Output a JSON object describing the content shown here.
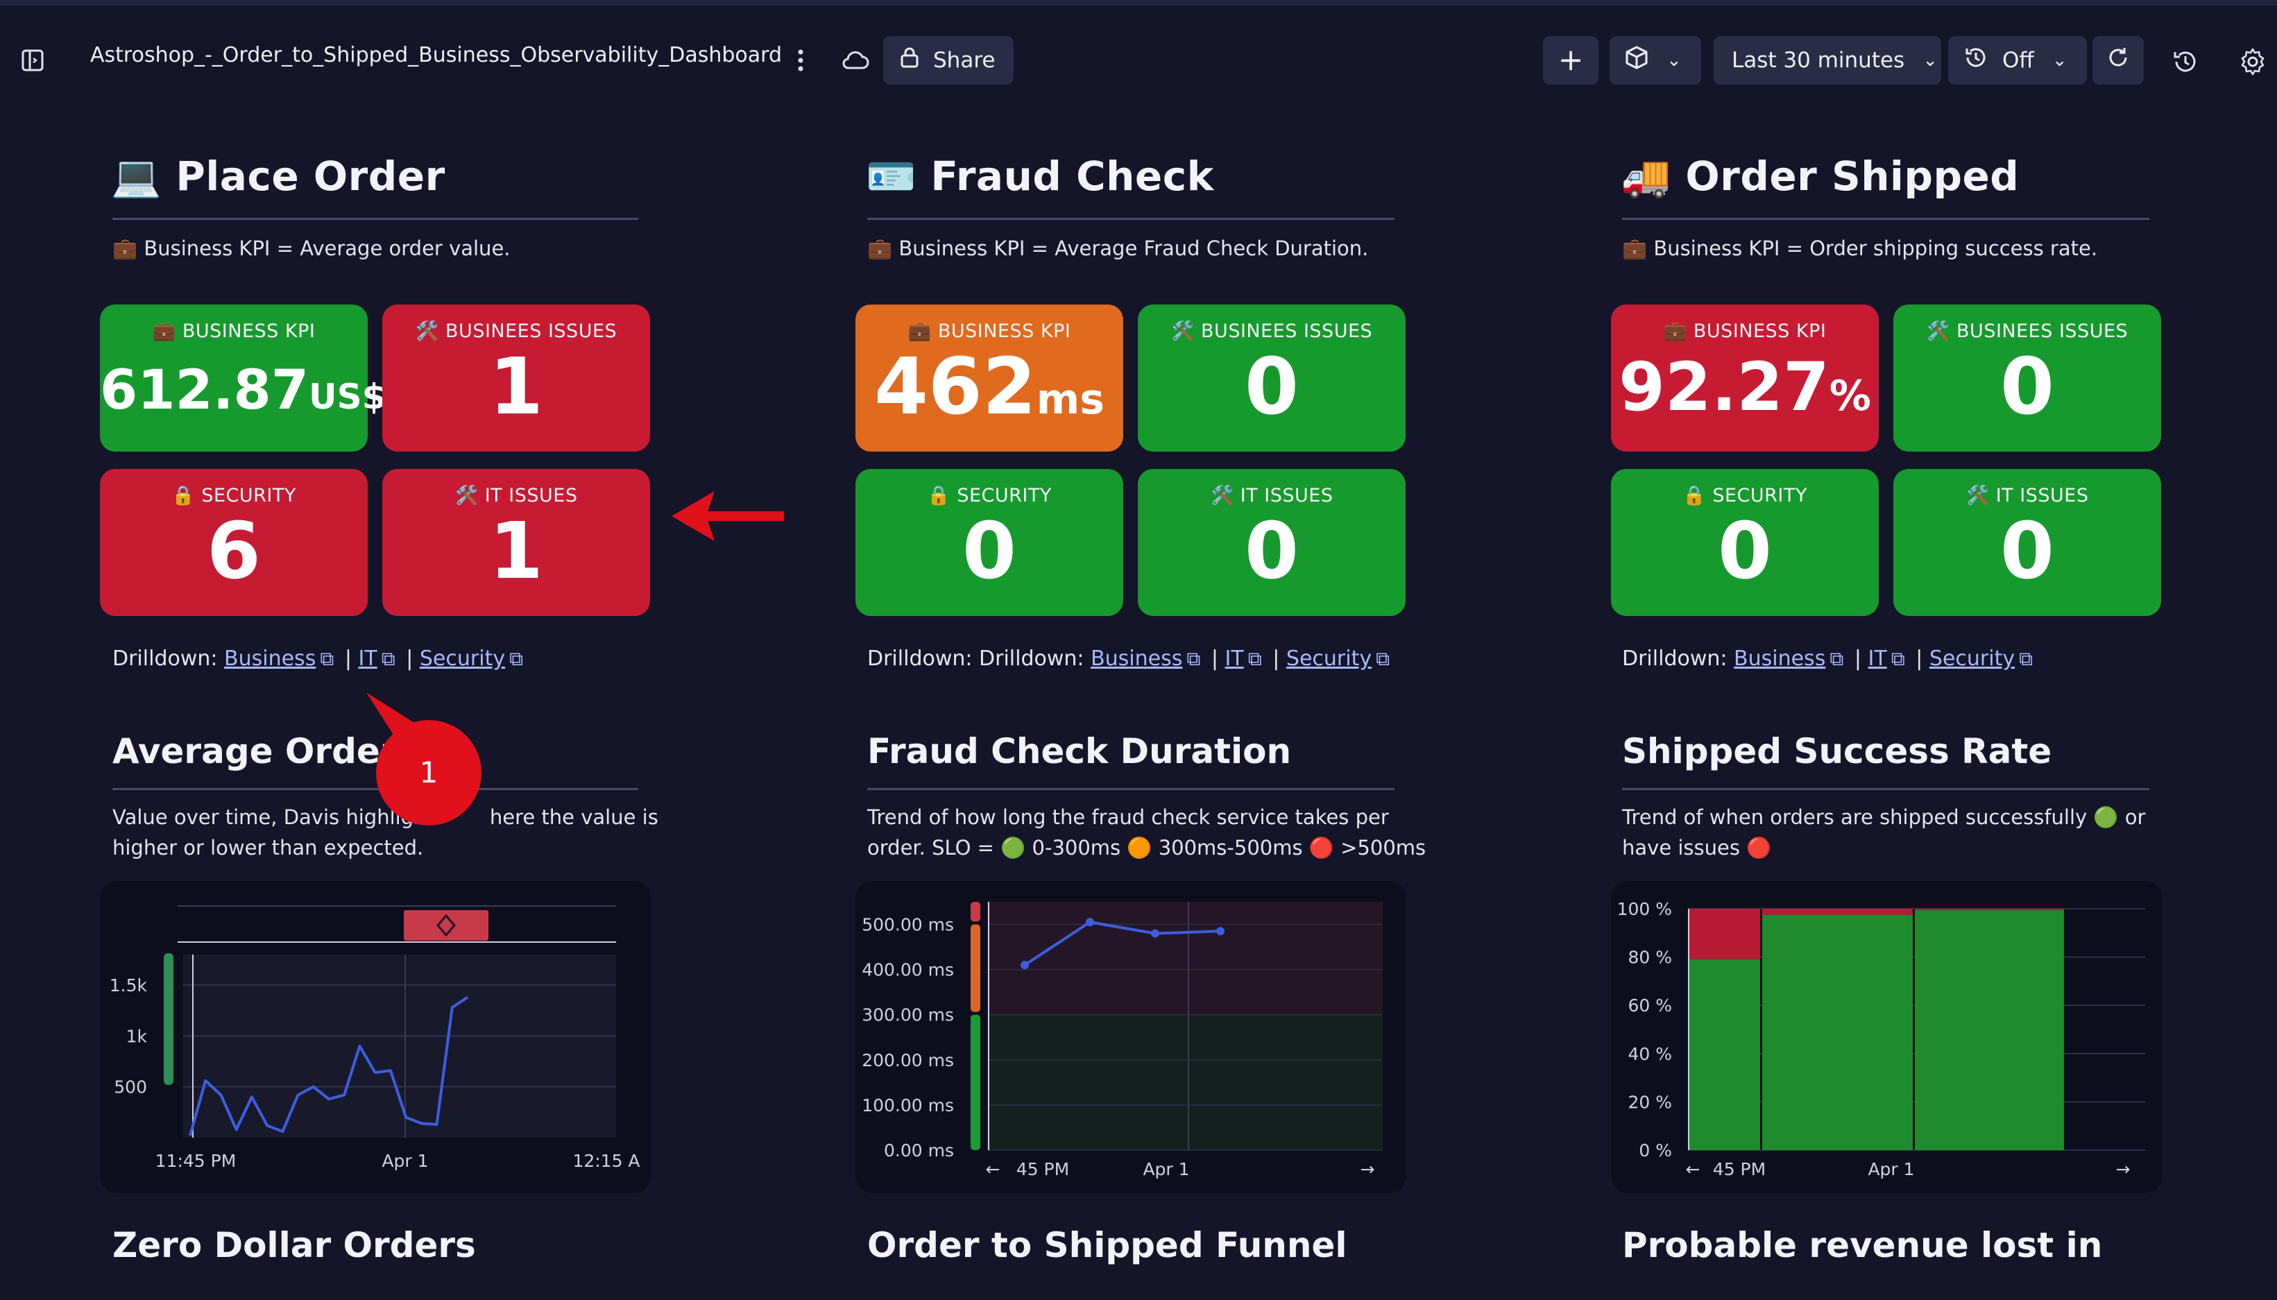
{
  "header": {
    "title": "Astroshop_-_Order_to_Shipped_Business_Observability_Dashboard",
    "share_label": "Share",
    "timeframe": "Last 30 minutes",
    "refresh": "Off",
    "icons": [
      "sidebar-toggle-icon",
      "more-vertical-icon",
      "cloud-icon",
      "lock-icon",
      "plus-icon",
      "cube-icon",
      "refresh-circle-icon",
      "reload-icon",
      "history-icon",
      "gear-icon"
    ]
  },
  "sections": [
    {
      "emoji": "💻",
      "title": "Place Order",
      "kpi_note": "💼 Business KPI = Average order value.",
      "tiles": [
        {
          "label": "💼 BUSINESS KPI",
          "value": "612.87",
          "unit": "US$",
          "status": "green"
        },
        {
          "label": "🛠️ BUSINEES ISSUES",
          "value": "1",
          "unit": "",
          "status": "red"
        },
        {
          "label": "🔒 SECURITY",
          "value": "6",
          "unit": "",
          "status": "red"
        },
        {
          "label": "🛠️ IT ISSUES",
          "value": "1",
          "unit": "",
          "status": "red"
        }
      ],
      "drill_prefix": "Drilldown: ",
      "links": [
        "Business",
        "IT",
        "Security"
      ],
      "chart_title": "Average Order S",
      "chart_desc_1": "Value over time, Davis highlight",
      "chart_desc_1b": "here the value is",
      "chart_desc_2": "higher or lower than expected.",
      "next_title": "Zero Dollar Orders"
    },
    {
      "emoji": "🪪",
      "title": "Fraud Check",
      "kpi_note": "💼 Business KPI = Average Fraud Check Duration.",
      "tiles": [
        {
          "label": "💼 BUSINESS KPI",
          "value": "462",
          "unit": "ms",
          "status": "orange"
        },
        {
          "label": "🛠️ BUSINEES ISSUES",
          "value": "0",
          "unit": "",
          "status": "green"
        },
        {
          "label": "🔒 SECURITY",
          "value": "0",
          "unit": "",
          "status": "green"
        },
        {
          "label": "🛠️ IT ISSUES",
          "value": "0",
          "unit": "",
          "status": "green"
        }
      ],
      "drill_prefix": "Drilldown: Drilldown: ",
      "links": [
        "Business",
        "IT",
        "Security"
      ],
      "chart_title": "Fraud Check Duration",
      "chart_desc_1": "Trend of how long the fraud check service takes per",
      "chart_desc_2": "order. SLO = 🟢 0-300ms 🟠 300ms-500ms 🔴 >500ms",
      "next_title": "Order to Shipped Funnel"
    },
    {
      "emoji": "🚚",
      "title": "Order Shipped",
      "kpi_note": "💼 Business KPI = Order shipping success rate.",
      "tiles": [
        {
          "label": "💼 BUSINESS KPI",
          "value": "92.27",
          "unit": "%",
          "status": "red"
        },
        {
          "label": "🛠️ BUSINEES ISSUES",
          "value": "0",
          "unit": "",
          "status": "green"
        },
        {
          "label": "🔒 SECURITY",
          "value": "0",
          "unit": "",
          "status": "green"
        },
        {
          "label": "🛠️ IT ISSUES",
          "value": "0",
          "unit": "",
          "status": "green"
        }
      ],
      "drill_prefix": "Drilldown: ",
      "links": [
        "Business",
        "IT",
        "Security"
      ],
      "chart_title": "Shipped Success Rate",
      "chart_desc_1": "Trend of when orders are shipped successfully 🟢 or",
      "chart_desc_2": "have issues 🔴",
      "next_title": "Probable revenue lost in"
    }
  ],
  "annotation": {
    "badge": "1",
    "arrow_color": "#e0101c"
  },
  "chart_data": [
    {
      "type": "line",
      "ytick_labels": [
        "1.5k",
        "1k",
        "500"
      ],
      "xtick_labels": [
        "11:45 PM",
        "Apr 1",
        "12:15 A"
      ],
      "ylim": [
        0,
        1800
      ],
      "series": [
        {
          "values": [
            20,
            560,
            420,
            80,
            400,
            120,
            60,
            420,
            500,
            380,
            420,
            900,
            640,
            660,
            200,
            140,
            130,
            1280,
            1380
          ]
        }
      ],
      "color": "#3d5ee0"
    },
    {
      "type": "line",
      "ytick_labels": [
        "500.00 ms",
        "400.00 ms",
        "300.00 ms",
        "200.00 ms",
        "100.00 ms",
        "0.00 ms"
      ],
      "xtick_labels": [
        "45 PM",
        "Apr 1"
      ],
      "ylim": [
        0,
        550
      ],
      "series": [
        {
          "values": [
            410,
            505,
            480,
            485
          ]
        }
      ],
      "color": "#3d5ee0"
    },
    {
      "type": "bar",
      "ytick_labels": [
        "100 %",
        "80 %",
        "60 %",
        "40 %",
        "20 %",
        "0 %"
      ],
      "xtick_labels": [
        "45 PM",
        "Apr 1"
      ],
      "ylim": [
        0,
        100
      ],
      "series": [
        {
          "values": [
            79,
            97.5,
            99.5
          ]
        },
        {
          "values": [
            21,
            2.5,
            0.5
          ]
        }
      ]
    }
  ]
}
